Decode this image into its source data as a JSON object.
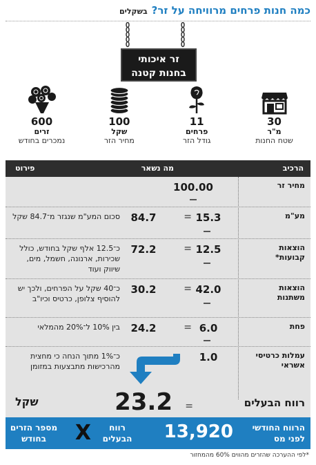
{
  "header": {
    "title": "כמה חנות פרחים מרוויחה על זר?",
    "subtitle": "בשקלים"
  },
  "sign": {
    "line1": "זר איכותי",
    "line2": "בחנות קטנה"
  },
  "stats": [
    {
      "icon": "shop-icon",
      "num": "30",
      "unit": "מ\"ר",
      "desc": "שטח החנות"
    },
    {
      "icon": "rose-icon",
      "num": "11",
      "unit": "פרחים",
      "desc": "גודל הזר"
    },
    {
      "icon": "coins-icon",
      "num": "100",
      "unit": "שקל",
      "desc": "מחיר הזר"
    },
    {
      "icon": "bouquet-icon",
      "num": "600",
      "unit": "זרים",
      "desc": "נמכרים בחודש"
    }
  ],
  "table": {
    "headers": {
      "component": "הרכיב",
      "remaining": "מה נשאר",
      "detail": "פירוט"
    },
    "rows": [
      {
        "component": "מחיר זר",
        "value": "100.00",
        "remaining": "",
        "detail": ""
      },
      {
        "component": "מע\"מ",
        "value": "15.3",
        "remaining": "84.7",
        "detail": "סכום המע\"מ שנגזר מ־84.7 שקל"
      },
      {
        "component": "הוצאות קבועות*",
        "value": "12.5",
        "remaining": "72.2",
        "detail": "כ־12.5 אלף שקל בחודש, כולל שכירות, ארנונה, חשמל, מים, שיווק ועוד"
      },
      {
        "component": "הוצאות משתנות",
        "value": "42.0",
        "remaining": "30.2",
        "detail": "כ־40 שקל על הפרחים, ולכך יש להוסיף צלופן, כרטיס וכיו\"ב"
      },
      {
        "component": "פחת",
        "value": "6.0",
        "remaining": "24.2",
        "detail": "בין 10% ל־20% מהמלאי"
      },
      {
        "component": "עמלות כרטיסי אשראי",
        "value": "1.0",
        "remaining": "",
        "detail": "כ־1% מתוך הנחה כי מחצית מהרכישות מתבצעות במזומן"
      }
    ],
    "profit": {
      "label": "רווח הבעלים",
      "value": "23.2",
      "currency": "שקל"
    }
  },
  "summary": {
    "label": "הרווח החודשי לפני מס",
    "value": "13,920",
    "owner_profit": "רווח הבעלים",
    "times": "X",
    "bouquets": "מספר הזרים בחודש"
  },
  "footnote": "*לפי ההערכה שהזרים מהווים 60% מהמחזור",
  "colors": {
    "accent": "#1f7fc1",
    "dark": "#2e2e2e",
    "table_bg": "#e3e3e3"
  }
}
